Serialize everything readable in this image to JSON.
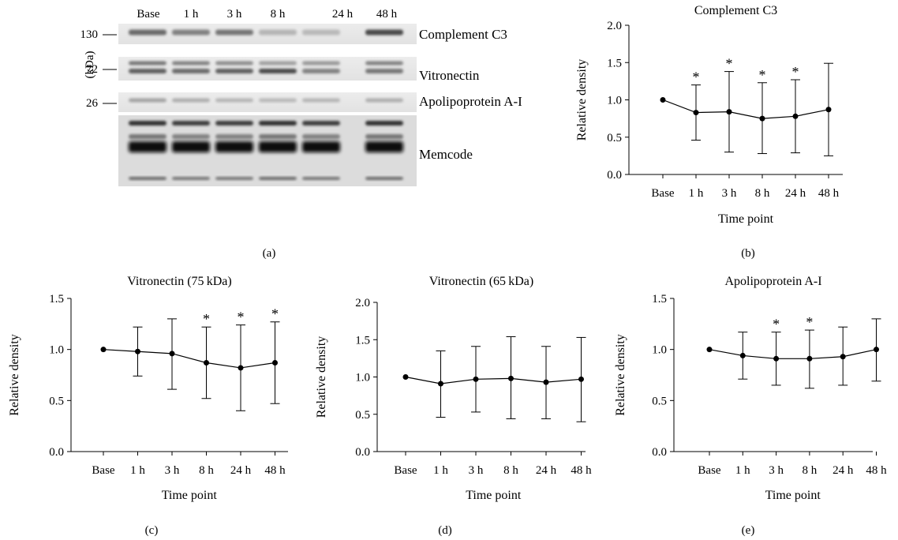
{
  "panel_letters": [
    "(a)",
    "(b)",
    "(c)",
    "(d)",
    "(e)"
  ],
  "blot": {
    "lanes": [
      "Base",
      "1 h",
      "3 h",
      "8 h",
      "24 h",
      "48 h"
    ],
    "mw_unit": "(kDa)",
    "mw_markers": [
      "130",
      "72",
      "26"
    ],
    "band_labels": [
      "Complement C3",
      "Vitronectin",
      "Apolipoprotein A-I",
      "Memcode"
    ]
  },
  "chart_data": [
    {
      "type": "line",
      "panel": "(b)",
      "title": "Complement C3",
      "xlabel": "Time point",
      "ylabel": "Relative density",
      "categories": [
        "Base",
        "1 h",
        "3 h",
        "8 h",
        "24 h",
        "48 h"
      ],
      "ylim": [
        0,
        2.0
      ],
      "yticks": [
        "0.0",
        "0.5",
        "1.0",
        "1.5",
        "2.0"
      ],
      "series": [
        {
          "values": [
            1.0,
            0.83,
            0.84,
            0.75,
            0.78,
            0.87
          ],
          "err_upper": [
            1.0,
            1.2,
            1.38,
            1.23,
            1.27,
            1.49
          ],
          "err_lower": [
            1.0,
            0.46,
            0.3,
            0.28,
            0.29,
            0.25
          ],
          "significant": [
            false,
            true,
            true,
            true,
            true,
            false
          ]
        }
      ],
      "grid": false
    },
    {
      "type": "line",
      "panel": "(c)",
      "title": "Vitronectin (75 kDa)",
      "xlabel": "Time point",
      "ylabel": "Relative density",
      "categories": [
        "Base",
        "1 h",
        "3 h",
        "8 h",
        "24 h",
        "48 h"
      ],
      "ylim": [
        0,
        1.5
      ],
      "yticks": [
        "0.0",
        "0.5",
        "1.0",
        "1.5"
      ],
      "series": [
        {
          "values": [
            1.0,
            0.98,
            0.96,
            0.87,
            0.82,
            0.87
          ],
          "err_upper": [
            1.0,
            1.22,
            1.3,
            1.22,
            1.24,
            1.27
          ],
          "err_lower": [
            1.0,
            0.74,
            0.61,
            0.52,
            0.4,
            0.47
          ],
          "significant": [
            false,
            false,
            false,
            true,
            true,
            true
          ]
        }
      ],
      "grid": false
    },
    {
      "type": "line",
      "panel": "(d)",
      "title": "Vitronectin (65 kDa)",
      "xlabel": "Time point",
      "ylabel": "Relative density",
      "categories": [
        "Base",
        "1 h",
        "3 h",
        "8 h",
        "24 h",
        "48 h"
      ],
      "ylim": [
        0,
        2.0
      ],
      "yticks": [
        "0.0",
        "0.5",
        "1.0",
        "1.5",
        "2.0"
      ],
      "series": [
        {
          "values": [
            1.0,
            0.91,
            0.97,
            0.98,
            0.93,
            0.97
          ],
          "err_upper": [
            1.0,
            1.35,
            1.41,
            1.54,
            1.41,
            1.53
          ],
          "err_lower": [
            1.0,
            0.46,
            0.53,
            0.44,
            0.44,
            0.4
          ],
          "significant": [
            false,
            false,
            false,
            false,
            false,
            false
          ]
        }
      ],
      "grid": false
    },
    {
      "type": "line",
      "panel": "(e)",
      "title": "Apolipoprotein A-I",
      "xlabel": "Time point",
      "ylabel": "Relative density",
      "categories": [
        "Base",
        "1 h",
        "3 h",
        "8 h",
        "24 h",
        "48 h"
      ],
      "ylim": [
        0,
        1.5
      ],
      "yticks": [
        "0.0",
        "0.5",
        "1.0",
        "1.5"
      ],
      "series": [
        {
          "values": [
            1.0,
            0.94,
            0.91,
            0.91,
            0.93,
            1.0
          ],
          "err_upper": [
            1.0,
            1.17,
            1.17,
            1.19,
            1.22,
            1.3
          ],
          "err_lower": [
            1.0,
            0.71,
            0.65,
            0.62,
            0.65,
            0.69
          ],
          "significant": [
            false,
            false,
            true,
            true,
            false,
            false
          ]
        }
      ],
      "grid": false
    }
  ]
}
